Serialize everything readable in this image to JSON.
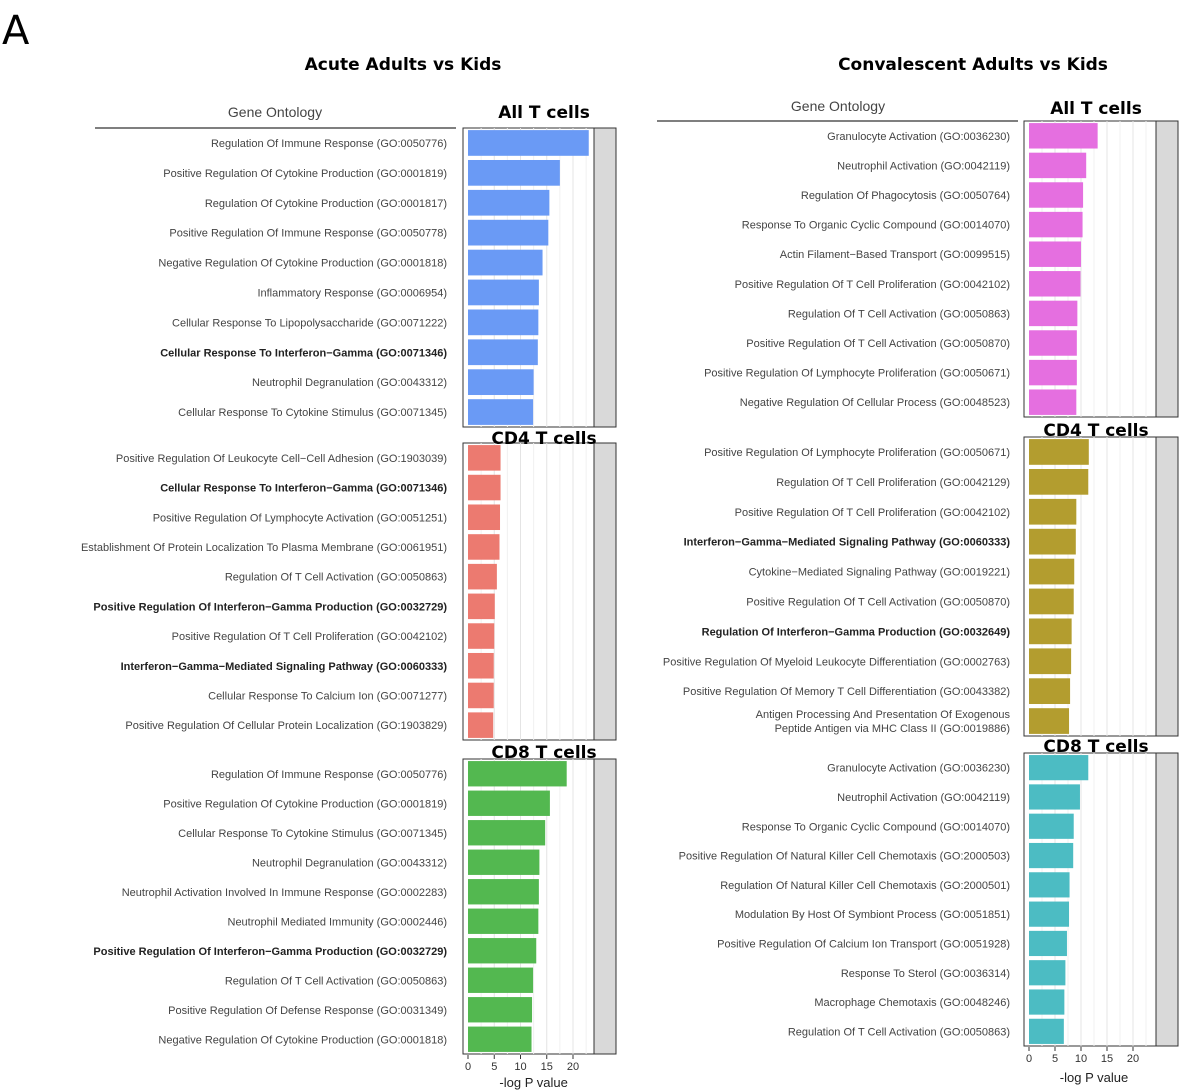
{
  "panel_label": "A",
  "chart_data": [
    {
      "type": "bar",
      "orientation": "horizontal",
      "title": "Acute Adults vs Kids",
      "header": "Gene Ontology",
      "xlabel": "-log P value",
      "xlim": [
        0,
        25
      ],
      "xticks": [
        0,
        5,
        10,
        15,
        20
      ],
      "facets": [
        {
          "title": "All T cells",
          "color": "#6a9af5",
          "terms": [
            {
              "label": "Regulation Of Immune Response (GO:0050776)",
              "value": 23,
              "bold": false
            },
            {
              "label": "Positive Regulation Of Cytokine Production (GO:0001819)",
              "value": 17.5,
              "bold": false
            },
            {
              "label": "Regulation Of Cytokine Production (GO:0001817)",
              "value": 15.5,
              "bold": false
            },
            {
              "label": "Positive Regulation Of Immune Response (GO:0050778)",
              "value": 15.3,
              "bold": false
            },
            {
              "label": "Negative Regulation Of Cytokine Production (GO:0001818)",
              "value": 14.2,
              "bold": false
            },
            {
              "label": "Inflammatory Response (GO:0006954)",
              "value": 13.5,
              "bold": false
            },
            {
              "label": "Cellular Response To Lipopolysaccharide (GO:0071222)",
              "value": 13.4,
              "bold": false
            },
            {
              "label": "Cellular Response To Interferon−Gamma (GO:0071346)",
              "value": 13.3,
              "bold": true
            },
            {
              "label": "Neutrophil Degranulation (GO:0043312)",
              "value": 12.5,
              "bold": false
            },
            {
              "label": "Cellular Response To Cytokine Stimulus (GO:0071345)",
              "value": 12.4,
              "bold": false
            }
          ]
        },
        {
          "title": "CD4 T cells",
          "color": "#ec7a70",
          "terms": [
            {
              "label": "Positive Regulation Of Leukocyte Cell−Cell Adhesion (GO:1903039)",
              "value": 6.2,
              "bold": false
            },
            {
              "label": "Cellular Response To Interferon−Gamma (GO:0071346)",
              "value": 6.2,
              "bold": true
            },
            {
              "label": "Positive Regulation Of Lymphocyte Activation (GO:0051251)",
              "value": 6.1,
              "bold": false
            },
            {
              "label": "Establishment Of Protein Localization To Plasma Membrane (GO:0061951)",
              "value": 6.0,
              "bold": false
            },
            {
              "label": "Regulation Of T Cell Activation (GO:0050863)",
              "value": 5.5,
              "bold": false
            },
            {
              "label": "Positive Regulation Of Interferon−Gamma Production (GO:0032729)",
              "value": 5.1,
              "bold": true
            },
            {
              "label": "Positive Regulation Of T Cell Proliferation (GO:0042102)",
              "value": 5.0,
              "bold": false
            },
            {
              "label": "Interferon−Gamma−Mediated Signaling Pathway (GO:0060333)",
              "value": 4.9,
              "bold": true
            },
            {
              "label": "Cellular Response To Calcium Ion (GO:0071277)",
              "value": 4.9,
              "bold": false
            },
            {
              "label": "Positive Regulation Of Cellular Protein Localization (GO:1903829)",
              "value": 4.8,
              "bold": false
            }
          ]
        },
        {
          "title": "CD8 T cells",
          "color": "#53b850",
          "terms": [
            {
              "label": "Regulation Of Immune Response (GO:0050776)",
              "value": 18.8,
              "bold": false
            },
            {
              "label": "Positive Regulation Of Cytokine Production (GO:0001819)",
              "value": 15.6,
              "bold": false
            },
            {
              "label": "Cellular Response To Cytokine Stimulus (GO:0071345)",
              "value": 14.7,
              "bold": false
            },
            {
              "label": "Neutrophil Degranulation (GO:0043312)",
              "value": 13.6,
              "bold": false
            },
            {
              "label": "Neutrophil Activation Involved In Immune Response (GO:0002283)",
              "value": 13.5,
              "bold": false
            },
            {
              "label": "Neutrophil Mediated Immunity (GO:0002446)",
              "value": 13.4,
              "bold": false
            },
            {
              "label": "Positive Regulation Of Interferon−Gamma Production (GO:0032729)",
              "value": 13.0,
              "bold": true
            },
            {
              "label": "Regulation Of T Cell Activation (GO:0050863)",
              "value": 12.4,
              "bold": false
            },
            {
              "label": "Positive Regulation Of Defense Response (GO:0031349)",
              "value": 12.2,
              "bold": false
            },
            {
              "label": "Negative Regulation Of Cytokine Production (GO:0001818)",
              "value": 12.1,
              "bold": false
            }
          ]
        }
      ]
    },
    {
      "type": "bar",
      "orientation": "horizontal",
      "title": "Convalescent Adults vs Kids",
      "header": "Gene Ontology",
      "xlabel": "-log P value",
      "xlim": [
        0,
        25
      ],
      "xticks": [
        0,
        5,
        10,
        15,
        20
      ],
      "facets": [
        {
          "title": "All T cells",
          "color": "#e56fe0",
          "terms": [
            {
              "label": "Granulocyte Activation (GO:0036230)",
              "value": 13.2,
              "bold": false
            },
            {
              "label": "Neutrophil Activation (GO:0042119)",
              "value": 11.0,
              "bold": false
            },
            {
              "label": "Regulation Of Phagocytosis (GO:0050764)",
              "value": 10.4,
              "bold": false
            },
            {
              "label": "Response To Organic Cyclic Compound (GO:0014070)",
              "value": 10.3,
              "bold": false
            },
            {
              "label": "Actin Filament−Based Transport (GO:0099515)",
              "value": 10.0,
              "bold": false
            },
            {
              "label": "Positive Regulation Of T Cell Proliferation (GO:0042102)",
              "value": 9.9,
              "bold": false
            },
            {
              "label": "Regulation Of T Cell Activation (GO:0050863)",
              "value": 9.3,
              "bold": false
            },
            {
              "label": "Positive Regulation Of T Cell Activation (GO:0050870)",
              "value": 9.2,
              "bold": false
            },
            {
              "label": "Positive Regulation Of Lymphocyte Proliferation (GO:0050671)",
              "value": 9.2,
              "bold": false
            },
            {
              "label": "Negative Regulation Of Cellular Process (GO:0048523)",
              "value": 9.1,
              "bold": false
            }
          ]
        },
        {
          "title": "CD4 T cells",
          "color": "#b39d2f",
          "terms": [
            {
              "label": "Positive Regulation Of Lymphocyte Proliferation (GO:0050671)",
              "value": 11.5,
              "bold": false
            },
            {
              "label": "Regulation Of T Cell Proliferation (GO:0042129)",
              "value": 11.4,
              "bold": false
            },
            {
              "label": "Positive Regulation Of T Cell Proliferation (GO:0042102)",
              "value": 9.1,
              "bold": false
            },
            {
              "label": "Interferon−Gamma−Mediated Signaling Pathway (GO:0060333)",
              "value": 9.0,
              "bold": true
            },
            {
              "label": "Cytokine−Mediated Signaling Pathway (GO:0019221)",
              "value": 8.7,
              "bold": false
            },
            {
              "label": "Positive Regulation Of T Cell Activation (GO:0050870)",
              "value": 8.6,
              "bold": false
            },
            {
              "label": "Regulation Of Interferon−Gamma Production (GO:0032649)",
              "value": 8.2,
              "bold": true
            },
            {
              "label": "Positive Regulation Of Myeloid Leukocyte Differentiation (GO:0002763)",
              "value": 8.1,
              "bold": false
            },
            {
              "label": "Positive Regulation Of Memory T Cell Differentiation (GO:0043382)",
              "value": 7.9,
              "bold": false
            },
            {
              "label": "Antigen Processing And Presentation Of Exogenous\nPeptide Antigen via MHC Class II (GO:0019886)",
              "value": 7.7,
              "bold": false
            }
          ]
        },
        {
          "title": "CD8 T cells",
          "color": "#4cbcc3",
          "terms": [
            {
              "label": "Granulocyte Activation (GO:0036230)",
              "value": 11.4,
              "bold": false
            },
            {
              "label": "Neutrophil Activation (GO:0042119)",
              "value": 9.8,
              "bold": false
            },
            {
              "label": "Response To Organic Cyclic Compound (GO:0014070)",
              "value": 8.6,
              "bold": false
            },
            {
              "label": "Positive Regulation Of Natural Killer Cell Chemotaxis (GO:2000503)",
              "value": 8.5,
              "bold": false
            },
            {
              "label": "Regulation Of Natural Killer Cell Chemotaxis (GO:2000501)",
              "value": 7.8,
              "bold": false
            },
            {
              "label": "Modulation By Host Of Symbiont Process (GO:0051851)",
              "value": 7.7,
              "bold": false
            },
            {
              "label": "Positive Regulation Of Calcium Ion Transport (GO:0051928)",
              "value": 7.3,
              "bold": false
            },
            {
              "label": "Response To Sterol (GO:0036314)",
              "value": 7.0,
              "bold": false
            },
            {
              "label": "Macrophage Chemotaxis (GO:0048246)",
              "value": 6.8,
              "bold": false
            },
            {
              "label": "Regulation Of T Cell Activation (GO:0050863)",
              "value": 6.7,
              "bold": false
            }
          ]
        }
      ]
    }
  ]
}
